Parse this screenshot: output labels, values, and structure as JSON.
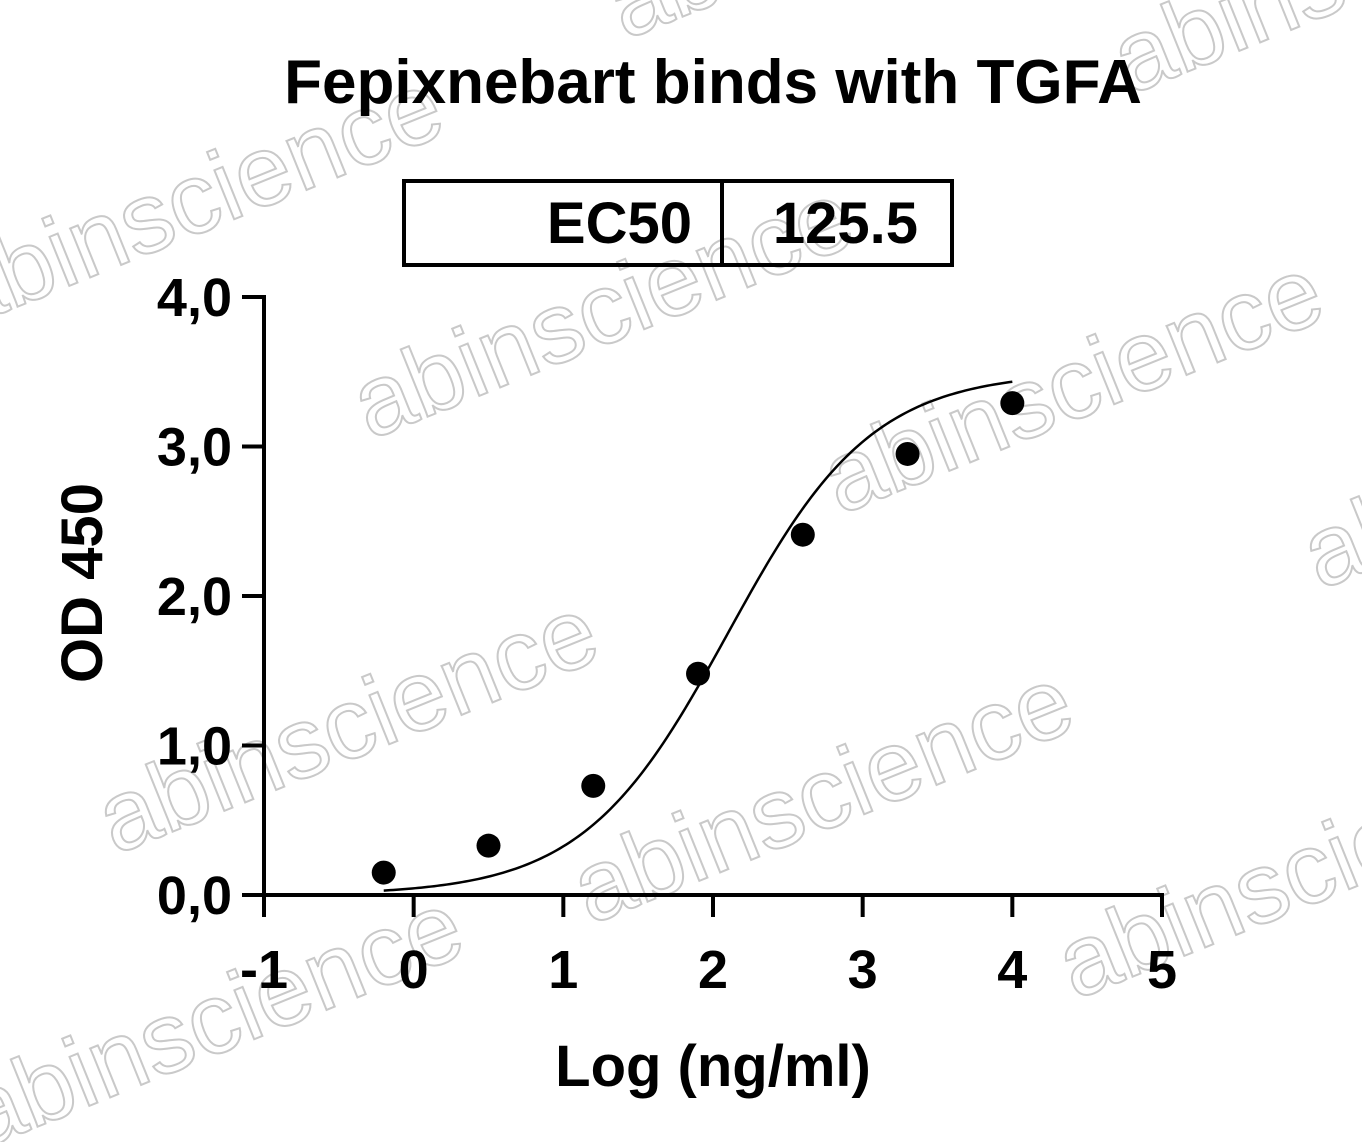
{
  "chart_data": {
    "type": "scatter",
    "title": "Fepixnebart binds with TGFA",
    "xlabel": "Log (ng/ml)",
    "ylabel": "OD 450",
    "xlim": [
      -1,
      5
    ],
    "ylim": [
      0,
      4
    ],
    "x_ticks": [
      "-1",
      "0",
      "1",
      "2",
      "3",
      "4",
      "5"
    ],
    "y_ticks": [
      "0,0",
      "1,0",
      "2,0",
      "3,0",
      "4,0"
    ],
    "series": [
      {
        "points": [
          {
            "x": -0.2,
            "y": 0.15
          },
          {
            "x": 0.5,
            "y": 0.33
          },
          {
            "x": 1.2,
            "y": 0.73
          },
          {
            "x": 1.9,
            "y": 1.48
          },
          {
            "x": 2.6,
            "y": 2.41
          },
          {
            "x": 3.3,
            "y": 2.95
          },
          {
            "x": 4.0,
            "y": 3.29
          }
        ]
      }
    ],
    "fit": {
      "bottom": 0.0,
      "top": 3.5,
      "logEC50": 2.099,
      "hill": 0.9
    },
    "table": {
      "label": "EC50",
      "value": "125.5"
    },
    "grid": false,
    "legend": "none"
  },
  "watermark": {
    "text": "abinscience",
    "color": "#c9c9c9"
  }
}
